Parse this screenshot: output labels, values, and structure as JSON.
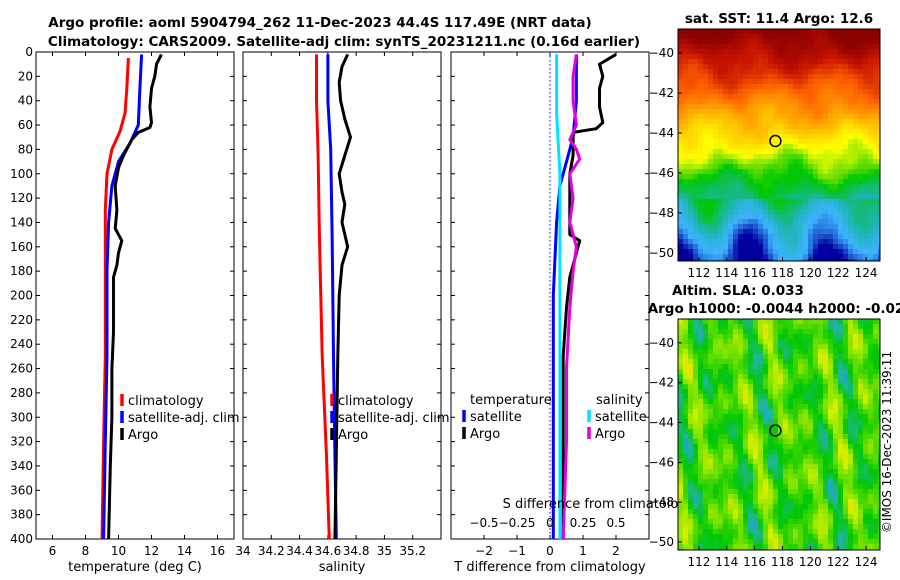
{
  "header": {
    "title_line1": "Argo profile: aoml 5904794_262 11-Dec-2023 44.4S 117.49E (NRT data)",
    "title_line2": "Climatology: CARS2009. Satellite-adj clim: synTS_20231211.nc (0.16d earlier)"
  },
  "credit": "©IMOS 16-Dec-2023 11:39:11",
  "colors": {
    "climatology": "#ff0000",
    "satellite_clim": "#0000ff",
    "argo": "#000000",
    "salinity_sat": "#00e5ff",
    "salinity_argo": "#e000e0"
  },
  "chart_data": [
    {
      "type": "line",
      "id": "temperature",
      "xlabel": "temperature (deg C)",
      "ylabel": "",
      "xlim": [
        5,
        17
      ],
      "ylim": [
        400,
        0
      ],
      "xticks": [
        6,
        8,
        10,
        12,
        14,
        16
      ],
      "yticks": [
        0,
        20,
        40,
        60,
        80,
        100,
        120,
        140,
        160,
        180,
        200,
        220,
        240,
        260,
        280,
        300,
        320,
        340,
        360,
        380,
        400
      ],
      "legend": [
        "climatology",
        "satellite-adj. clim",
        "Argo"
      ],
      "series": [
        {
          "name": "climatology",
          "color": "#ff0000",
          "points": [
            [
              10.6,
              5
            ],
            [
              10.5,
              30
            ],
            [
              10.4,
              50
            ],
            [
              10.1,
              65
            ],
            [
              9.6,
              80
            ],
            [
              9.3,
              100
            ],
            [
              9.2,
              130
            ],
            [
              9.2,
              180
            ],
            [
              9.2,
              250
            ],
            [
              9.1,
              320
            ],
            [
              9.0,
              400
            ]
          ]
        },
        {
          "name": "satellite-adj. clim",
          "color": "#0000ff",
          "points": [
            [
              11.4,
              2
            ],
            [
              11.3,
              30
            ],
            [
              11.2,
              60
            ],
            [
              10.7,
              75
            ],
            [
              10.0,
              90
            ],
            [
              9.6,
              110
            ],
            [
              9.4,
              140
            ],
            [
              9.3,
              180
            ],
            [
              9.3,
              250
            ],
            [
              9.2,
              320
            ],
            [
              9.1,
              400
            ]
          ]
        },
        {
          "name": "Argo",
          "color": "#000000",
          "points": [
            [
              12.6,
              2
            ],
            [
              12.3,
              10
            ],
            [
              12.2,
              20
            ],
            [
              12.0,
              30
            ],
            [
              11.9,
              45
            ],
            [
              12.0,
              58
            ],
            [
              11.9,
              62
            ],
            [
              11.2,
              66
            ],
            [
              10.8,
              72
            ],
            [
              10.3,
              85
            ],
            [
              10.0,
              95
            ],
            [
              9.8,
              110
            ],
            [
              9.9,
              130
            ],
            [
              9.8,
              145
            ],
            [
              10.2,
              155
            ],
            [
              10.0,
              165
            ],
            [
              9.9,
              175
            ],
            [
              9.7,
              185
            ],
            [
              9.7,
              200
            ],
            [
              9.7,
              230
            ],
            [
              9.6,
              260
            ],
            [
              9.6,
              300
            ],
            [
              9.5,
              340
            ],
            [
              9.4,
              400
            ]
          ]
        }
      ]
    },
    {
      "type": "line",
      "id": "salinity",
      "xlabel": "salinity",
      "xlim": [
        34,
        35.4
      ],
      "ylim": [
        400,
        0
      ],
      "xticks": [
        34,
        34.2,
        34.4,
        34.6,
        34.8,
        35,
        35.2
      ],
      "legend": [
        "climatology",
        "satellite-adj. clim",
        "Argo"
      ],
      "series": [
        {
          "name": "climatology",
          "color": "#ff0000",
          "points": [
            [
              34.52,
              2
            ],
            [
              34.52,
              40
            ],
            [
              34.53,
              80
            ],
            [
              34.54,
              150
            ],
            [
              34.56,
              250
            ],
            [
              34.59,
              330
            ],
            [
              34.61,
              400
            ]
          ]
        },
        {
          "name": "satellite-adj. clim",
          "color": "#0000ff",
          "points": [
            [
              34.6,
              2
            ],
            [
              34.6,
              40
            ],
            [
              34.62,
              80
            ],
            [
              34.63,
              150
            ],
            [
              34.64,
              250
            ],
            [
              34.65,
              330
            ],
            [
              34.66,
              400
            ]
          ]
        },
        {
          "name": "Argo",
          "color": "#000000",
          "points": [
            [
              34.74,
              2
            ],
            [
              34.7,
              12
            ],
            [
              34.68,
              25
            ],
            [
              34.69,
              40
            ],
            [
              34.72,
              55
            ],
            [
              34.76,
              70
            ],
            [
              34.72,
              85
            ],
            [
              34.68,
              100
            ],
            [
              34.7,
              115
            ],
            [
              34.72,
              125
            ],
            [
              34.7,
              140
            ],
            [
              34.74,
              160
            ],
            [
              34.7,
              175
            ],
            [
              34.68,
              200
            ],
            [
              34.67,
              250
            ],
            [
              34.66,
              330
            ],
            [
              34.65,
              400
            ]
          ]
        }
      ]
    },
    {
      "type": "line",
      "id": "difference",
      "xlabel": "T difference from climatology",
      "xlabel_top": "S difference from climatology",
      "xlim": [
        -3,
        3
      ],
      "ylim": [
        400,
        0
      ],
      "xticks": [
        -2,
        -1,
        0,
        1,
        2
      ],
      "xticks_salinity": [
        -0.5,
        -0.25,
        0,
        0.25,
        0.5
      ],
      "legend_temperature_title": "temperature",
      "legend_temperature": [
        "satellite",
        "Argo"
      ],
      "legend_salinity_title": "salinity",
      "legend_salinity": [
        "satellite",
        "Argo"
      ],
      "series": [
        {
          "name": "T satellite",
          "color": "#0000ff",
          "points": [
            [
              0.8,
              2
            ],
            [
              0.8,
              40
            ],
            [
              0.7,
              70
            ],
            [
              0.5,
              90
            ],
            [
              0.3,
              110
            ],
            [
              0.2,
              140
            ],
            [
              0.1,
              200
            ],
            [
              0.1,
              260
            ],
            [
              0.1,
              320
            ],
            [
              0.1,
              400
            ]
          ]
        },
        {
          "name": "T Argo",
          "color": "#000000",
          "points": [
            [
              2.0,
              2
            ],
            [
              1.5,
              10
            ],
            [
              1.6,
              20
            ],
            [
              1.5,
              30
            ],
            [
              1.5,
              45
            ],
            [
              1.6,
              58
            ],
            [
              1.4,
              63
            ],
            [
              0.7,
              66
            ],
            [
              0.7,
              72
            ],
            [
              0.7,
              85
            ],
            [
              0.6,
              100
            ],
            [
              0.6,
              130
            ],
            [
              0.6,
              150
            ],
            [
              0.9,
              155
            ],
            [
              0.8,
              165
            ],
            [
              0.6,
              185
            ],
            [
              0.5,
              210
            ],
            [
              0.4,
              250
            ],
            [
              0.4,
              300
            ],
            [
              0.4,
              350
            ],
            [
              0.4,
              400
            ]
          ]
        },
        {
          "name": "S satellite",
          "color": "#00e5ff",
          "points": [
            [
              0.2,
              2
            ],
            [
              0.2,
              50
            ],
            [
              0.3,
              100
            ],
            [
              0.3,
              200
            ],
            [
              0.3,
              300
            ],
            [
              0.3,
              400
            ]
          ]
        },
        {
          "name": "S Argo",
          "color": "#e000e0",
          "points": [
            [
              0.8,
              2
            ],
            [
              0.7,
              20
            ],
            [
              0.7,
              40
            ],
            [
              0.8,
              60
            ],
            [
              0.6,
              72
            ],
            [
              0.8,
              80
            ],
            [
              0.9,
              88
            ],
            [
              0.6,
              100
            ],
            [
              0.7,
              120
            ],
            [
              0.6,
              140
            ],
            [
              0.8,
              160
            ],
            [
              0.7,
              180
            ],
            [
              0.6,
              210
            ],
            [
              0.5,
              260
            ],
            [
              0.5,
              320
            ],
            [
              0.4,
              400
            ]
          ]
        }
      ]
    },
    {
      "type": "heatmap",
      "id": "sst_map",
      "title": "sat. SST: 11.4 Argo: 12.6",
      "xlim": [
        110.5,
        125
      ],
      "ylim": [
        -50.4,
        -38.8
      ],
      "xticks": [
        112,
        114,
        116,
        118,
        120,
        122,
        124
      ],
      "yticks": [
        -40,
        -42,
        -44,
        -46,
        -48,
        -50
      ],
      "marker": [
        117.49,
        -44.4
      ],
      "colormap_stops": [
        "#8b0000",
        "#c81400",
        "#ff6400",
        "#ffb400",
        "#ffff00",
        "#00c800",
        "#1eb4b4",
        "#3cb4ff",
        "#0000a0"
      ]
    },
    {
      "type": "heatmap",
      "id": "sla_map",
      "title_line1": "Altim. SLA: 0.033",
      "title_line2": "Argo h1000: -0.0044 h2000: -0.02",
      "xlim": [
        110.5,
        125
      ],
      "ylim": [
        -50.4,
        -38.8
      ],
      "xticks": [
        112,
        114,
        116,
        118,
        120,
        122,
        124
      ],
      "yticks": [
        -40,
        -42,
        -44,
        -46,
        -48,
        -50
      ],
      "marker": [
        117.49,
        -44.4
      ]
    }
  ]
}
